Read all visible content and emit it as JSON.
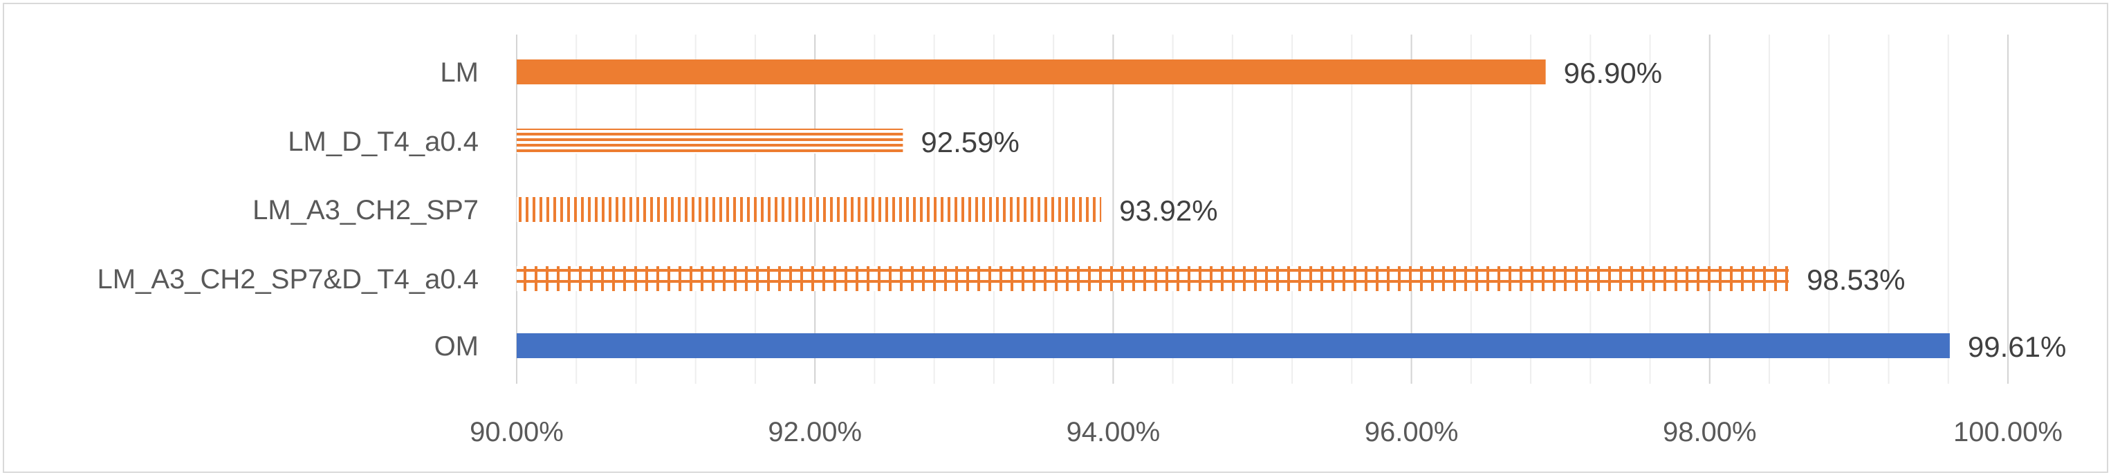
{
  "chart_data": {
    "type": "bar",
    "orientation": "horizontal",
    "categories": [
      "LM",
      "LM_D_T4_a0.4",
      "LM_A3_CH2_SP7",
      "LM_A3_CH2_SP7&D_T4_a0.4",
      "OM"
    ],
    "values": [
      96.9,
      92.59,
      93.92,
      98.53,
      99.61
    ],
    "data_labels": [
      "96.90%",
      "92.59%",
      "93.92%",
      "98.53%",
      "99.61%"
    ],
    "bar_styles": [
      "solid",
      "horizontal-stripes",
      "vertical-stripes",
      "cross-stripes",
      "solid"
    ],
    "bar_colors": [
      "#ED7D31",
      "#ED7D31",
      "#ED7D31",
      "#ED7D31",
      "#4472C4"
    ],
    "x_ticks": [
      "90.00%",
      "92.00%",
      "94.00%",
      "96.00%",
      "98.00%",
      "100.00%"
    ],
    "xlim": [
      90,
      100
    ],
    "major_step": 2,
    "minor_step": 0.4,
    "grid": true,
    "legend": "none"
  }
}
